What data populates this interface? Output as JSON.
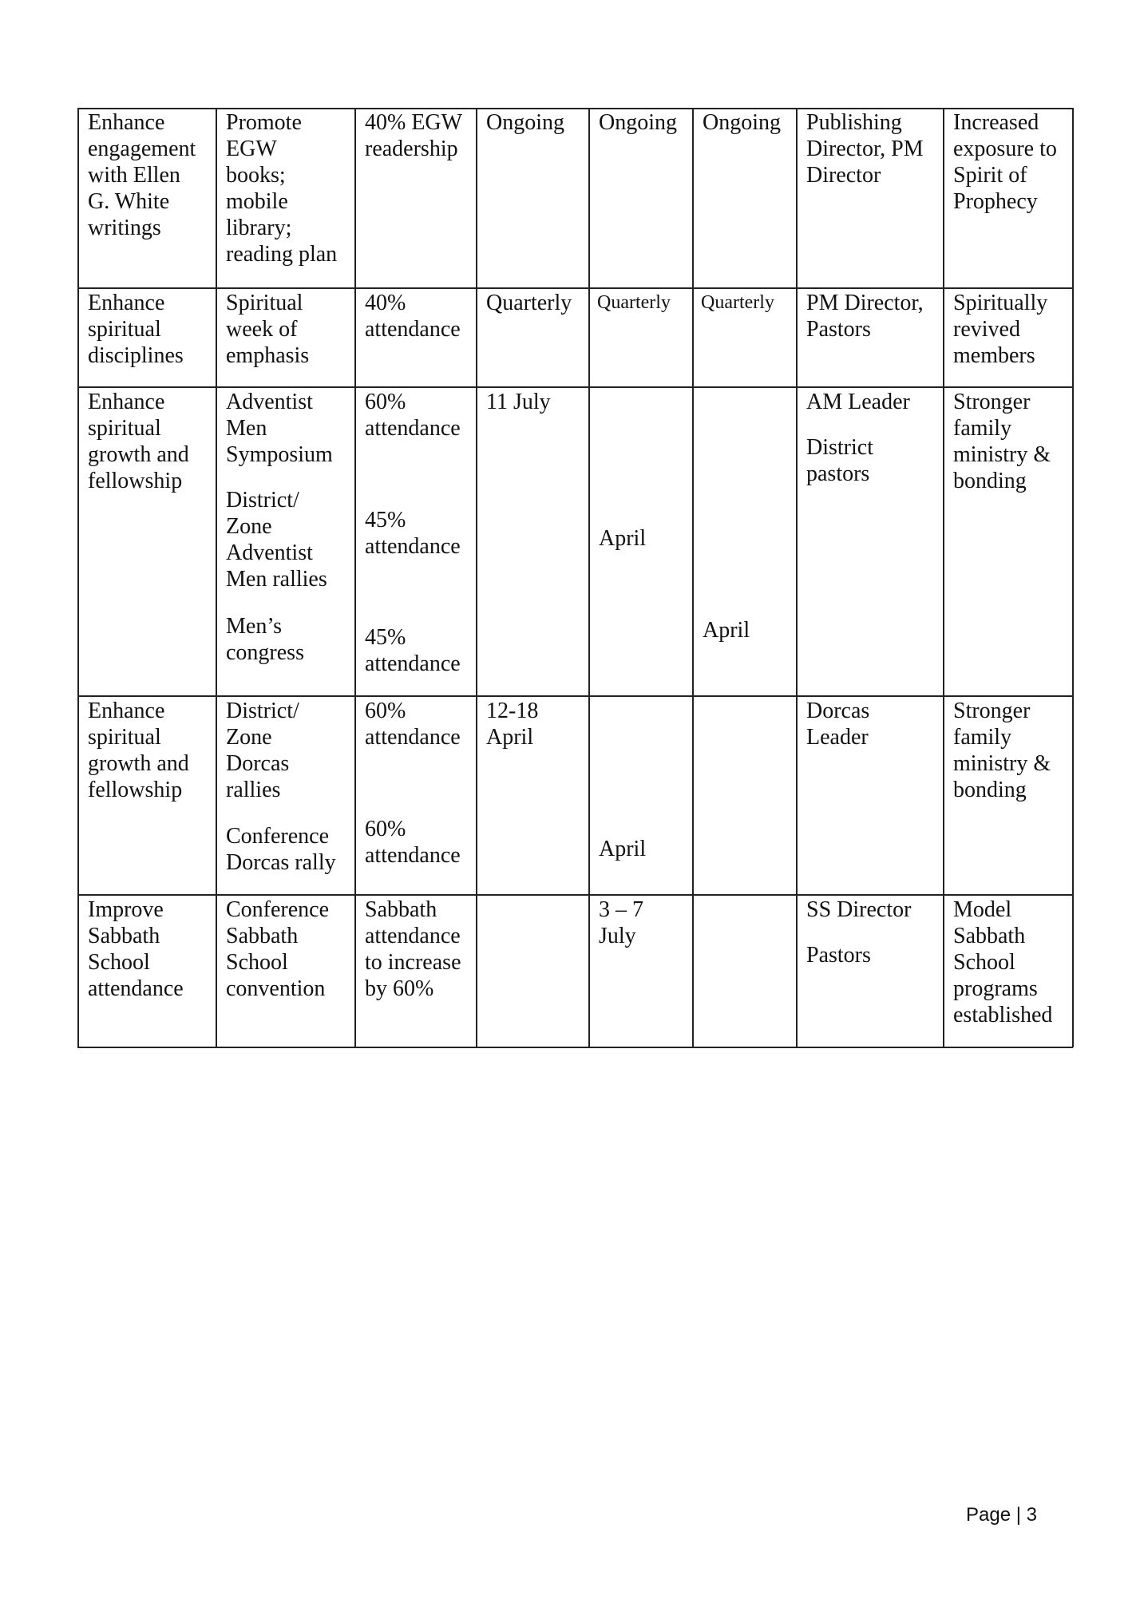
{
  "table": {
    "rows": [
      {
        "objective": "Enhance\nengagement\nwith Ellen\nG. White\nwritings",
        "activity": [
          "Promote\nEGW\nbooks;\nmobile\nlibrary;\nreading plan"
        ],
        "target": [
          "40% EGW\nreadership"
        ],
        "col4": [
          "Ongoing"
        ],
        "col5": [
          "Ongoing"
        ],
        "col6": [
          "Ongoing"
        ],
        "responsible": [
          "Publishing\nDirector, PM\nDirector"
        ],
        "outcome": "Increased\nexposure to\nSpirit of\nProphecy"
      },
      {
        "objective": "Enhance\nspiritual\ndisciplines",
        "activity": [
          "Spiritual\nweek of\nemphasis"
        ],
        "target": [
          "40%\nattendance"
        ],
        "col4": [
          "Quarterly"
        ],
        "col5": [
          "Quarterly"
        ],
        "col6": [
          "Quarterly"
        ],
        "responsible": [
          "PM Director,\nPastors"
        ],
        "outcome": "Spiritually\nrevived\nmembers"
      },
      {
        "objective": "Enhance\nspiritual\ngrowth and\nfellowship",
        "activity": [
          "Adventist\nMen\nSymposium",
          "District/\nZone\nAdventist\nMen rallies",
          "Men’s\ncongress"
        ],
        "target": [
          "60%\nattendance",
          "45%\nattendance",
          "45%\nattendance"
        ],
        "col4": [
          "11 July"
        ],
        "col5": [
          "April"
        ],
        "col6": [
          "April"
        ],
        "responsible": [
          "AM Leader",
          "District\npastors"
        ],
        "outcome": "Stronger\nfamily\nministry &\nbonding"
      },
      {
        "objective": "Enhance\nspiritual\ngrowth and\nfellowship",
        "activity": [
          "District/\nZone\nDorcas\nrallies",
          "Conference\nDorcas rally"
        ],
        "target": [
          "60%\nattendance",
          "60%\nattendance"
        ],
        "col4": [
          "12-18\nApril"
        ],
        "col5": [
          "April"
        ],
        "col6": [],
        "responsible": [
          "Dorcas\nLeader"
        ],
        "outcome": "Stronger\nfamily\nministry &\nbonding"
      },
      {
        "objective": "Improve\nSabbath\nSchool\nattendance",
        "activity": [
          " Conference\nSabbath\nSchool\nconvention"
        ],
        "target": [
          "Sabbath\nattendance\nto increase\nby 60%"
        ],
        "col4": [],
        "col5": [
          "3 – 7\nJuly"
        ],
        "col6": [],
        "responsible": [
          "SS Director",
          "Pastors"
        ],
        "outcome": "Model\nSabbath\nSchool\nprograms\nestablished"
      }
    ]
  },
  "footer": {
    "page_label": "Page | 3"
  }
}
